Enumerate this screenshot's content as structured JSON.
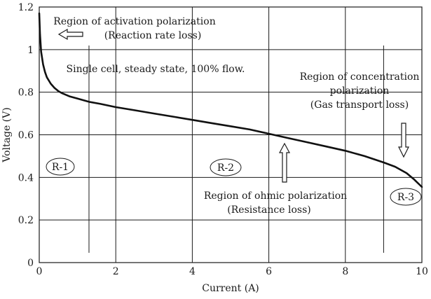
{
  "chart_data": {
    "type": "line",
    "xlabel": "Current (A)",
    "ylabel": "Voltage (V)",
    "xlim": [
      0,
      10
    ],
    "ylim": [
      0,
      1.2
    ],
    "xticks": [
      0,
      2,
      4,
      6,
      8,
      10
    ],
    "xtick_labels": [
      "0",
      "2",
      "4",
      "6",
      "8",
      "10"
    ],
    "yticks": [
      0,
      0.2,
      0.4,
      0.6,
      0.8,
      1.0,
      1.2
    ],
    "ytick_labels": [
      "0",
      "0.2",
      "0.4",
      "0.6",
      "0.8",
      "1",
      "1.2"
    ],
    "grid": true,
    "region_boundaries_x": [
      1.3,
      9.0
    ],
    "series": [
      {
        "x": [
          0.0,
          0.02,
          0.05,
          0.1,
          0.15,
          0.2,
          0.3,
          0.4,
          0.5,
          0.6,
          0.8,
          1.0,
          1.3,
          1.6,
          2.0,
          2.5,
          3.0,
          3.5,
          4.0,
          4.5,
          5.0,
          5.5,
          6.0,
          6.5,
          7.0,
          7.5,
          8.0,
          8.5,
          9.0,
          9.3,
          9.6,
          9.8,
          10.0
        ],
        "y": [
          1.17,
          1.07,
          0.99,
          0.93,
          0.895,
          0.87,
          0.84,
          0.82,
          0.805,
          0.795,
          0.78,
          0.77,
          0.755,
          0.745,
          0.73,
          0.715,
          0.7,
          0.685,
          0.67,
          0.655,
          0.64,
          0.625,
          0.605,
          0.585,
          0.565,
          0.545,
          0.525,
          0.5,
          0.47,
          0.45,
          0.42,
          0.39,
          0.355
        ]
      }
    ],
    "annotations": {
      "activation_title": "Region of activation polarization",
      "activation_sub": "(Reaction rate loss)",
      "cell_note": "Single cell, steady state, 100% flow.",
      "conc_line1": "Region of concentration",
      "conc_line2": "polarization",
      "conc_line3": "(Gas transport loss)",
      "ohmic_title": "Region of ohmic polarization",
      "ohmic_sub": "(Resistance loss)",
      "r1": "R-1",
      "r2": "R-2",
      "r3": "R-3"
    }
  }
}
